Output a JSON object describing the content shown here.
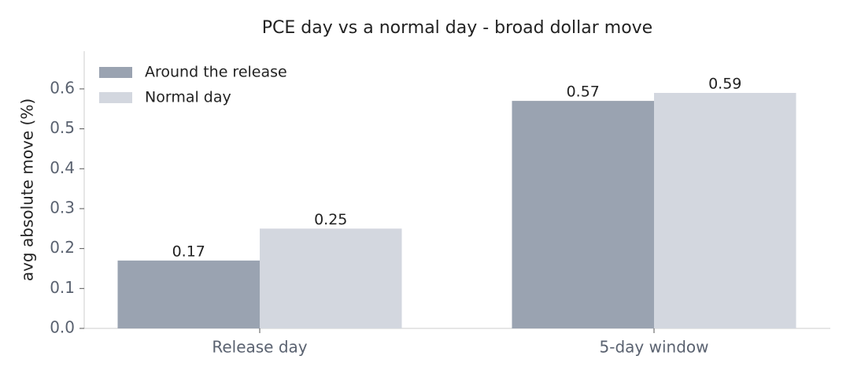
{
  "chart_data": {
    "type": "bar",
    "title": "PCE day vs a normal day - broad dollar move",
    "y_label": "avg absolute move (%)",
    "categories": [
      "Release day",
      "5-day window"
    ],
    "series": [
      {
        "name": "Around the release",
        "color": "#9aa3b1",
        "values": [
          0.17,
          0.57
        ]
      },
      {
        "name": "Normal day",
        "color": "#d3d7df",
        "values": [
          0.25,
          0.59
        ]
      }
    ],
    "ylim": [
      0,
      0.7
    ],
    "yticks": [
      {
        "value": 0,
        "label": "0.0"
      },
      0.1,
      0.2,
      0.3,
      0.4,
      0.5,
      0.6
    ],
    "grid": false,
    "legend": "upper-left"
  }
}
